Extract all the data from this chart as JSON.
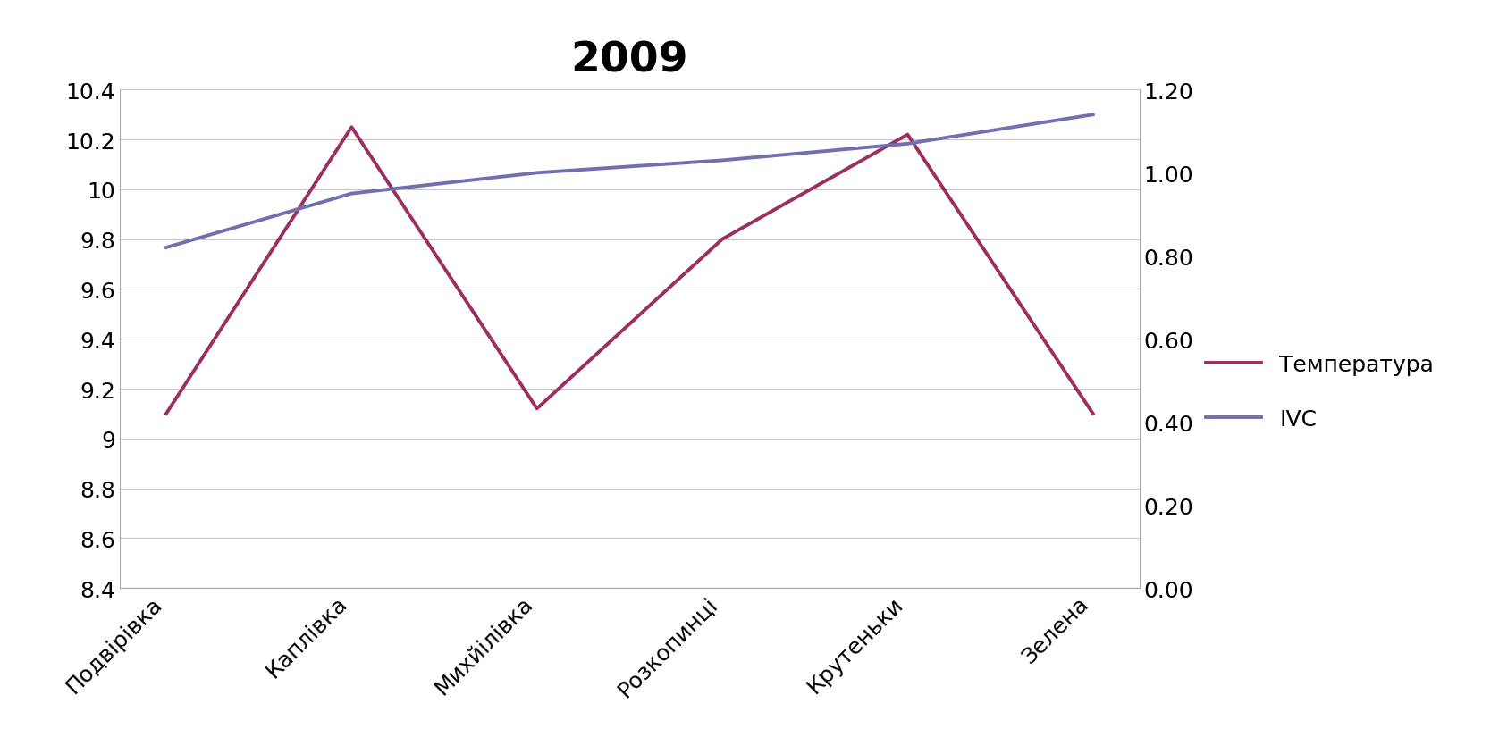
{
  "title": "2009",
  "categories": [
    "Подвірівка",
    "Каплівка",
    "Михйілівка",
    "Розкопинці",
    "Крутеньки",
    "Зелена"
  ],
  "temperatura": [
    9.1,
    10.25,
    9.12,
    9.8,
    10.22,
    9.1
  ],
  "ivc": [
    0.82,
    0.95,
    1.0,
    1.03,
    1.07,
    1.14
  ],
  "temp_color": "#9B3060",
  "ivc_color": "#7070B0",
  "left_ylim": [
    8.4,
    10.4
  ],
  "right_ylim": [
    0.0,
    1.2
  ],
  "left_yticks": [
    8.4,
    8.6,
    8.8,
    9.0,
    9.2,
    9.4,
    9.6,
    9.8,
    10.0,
    10.2,
    10.4
  ],
  "left_yticklabels": [
    "8.4",
    "8.6",
    "8.8",
    "9",
    "9.2",
    "9.4",
    "9.6",
    "9.8",
    "10",
    "10.2",
    "10.4"
  ],
  "right_yticks": [
    0.0,
    0.2,
    0.4,
    0.6,
    0.8,
    1.0,
    1.2
  ],
  "right_yticklabels": [
    "0.00",
    "0.20",
    "0.40",
    "0.60",
    "0.80",
    "1.00",
    "1.20"
  ],
  "legend_temp": "Температура",
  "legend_ivc": "IVC",
  "line_width": 2.8,
  "bg_color": "#FFFFFF",
  "grid_color": "#C8C8C8",
  "tick_fontsize": 18,
  "legend_fontsize": 18,
  "title_fontsize": 34
}
